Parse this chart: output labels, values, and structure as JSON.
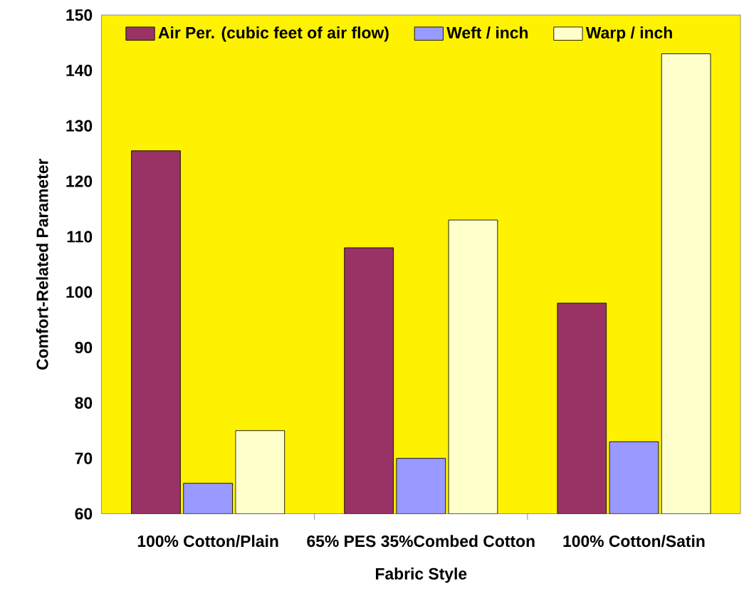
{
  "chart_data": {
    "type": "bar",
    "xlabel": "Fabric Style",
    "ylabel": "Comfort-Related Parameter",
    "categories": [
      "100% Cotton/Plain",
      "65% PES 35%Combed Cotton",
      "100% Cotton/Satin"
    ],
    "series": [
      {
        "name": "Air Per. (cubic feet of air flow)",
        "color": "#993366",
        "values": [
          125.5,
          108,
          98
        ]
      },
      {
        "name": "Weft / inch",
        "color": "#9999ff",
        "values": [
          65.5,
          70,
          73
        ]
      },
      {
        "name": "Warp / inch",
        "color": "#ffffcc",
        "values": [
          75,
          113,
          143
        ]
      }
    ],
    "ylim": [
      60,
      150
    ],
    "yticks": [
      60,
      70,
      80,
      90,
      100,
      110,
      120,
      130,
      140,
      150
    ],
    "legend": "top",
    "grid": false
  }
}
